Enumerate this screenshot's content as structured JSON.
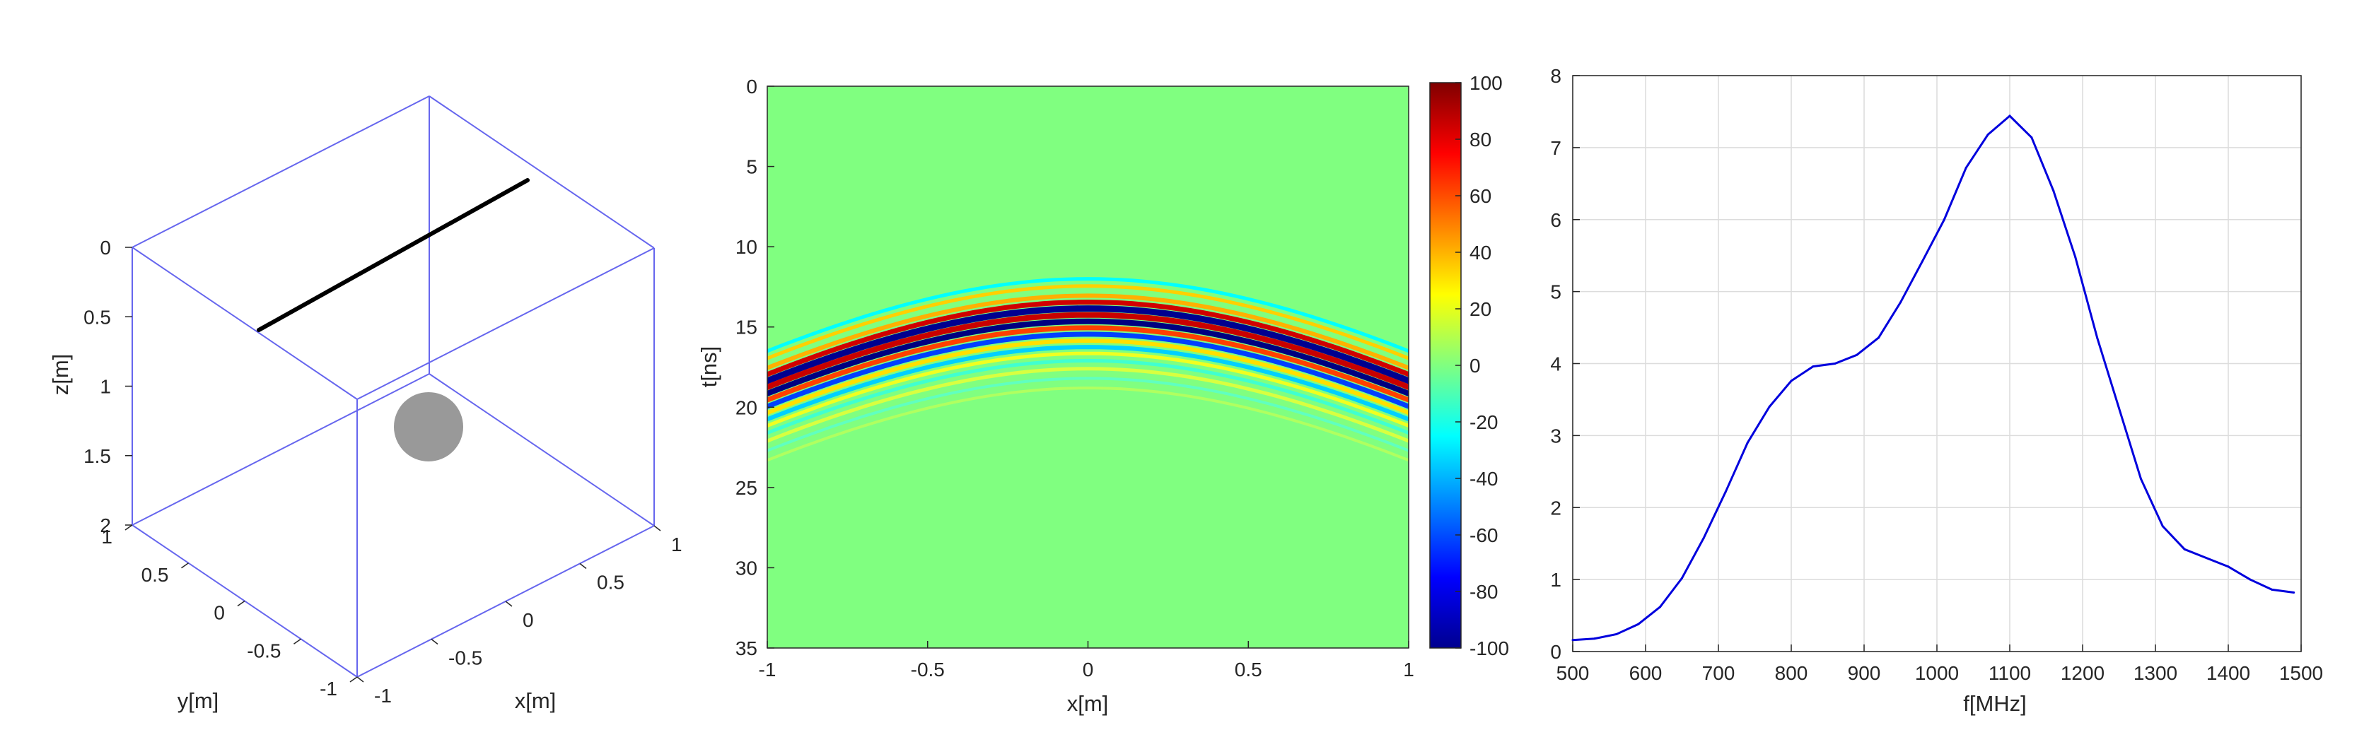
{
  "chart_data": [
    {
      "type": "scatter",
      "panel": "3d-geometry",
      "xlabel": "x[m]",
      "ylabel": "y[m]",
      "zlabel": "z[m]",
      "xlim": [
        -1,
        1
      ],
      "ylim": [
        -1,
        1
      ],
      "zlim": [
        0,
        2
      ],
      "z_reversed": true,
      "x_ticks": [
        "-1",
        "-0.5",
        "0",
        "0.5",
        "1"
      ],
      "y_ticks": [
        "-1",
        "-0.5",
        "0",
        "0.5",
        "1"
      ],
      "z_ticks": [
        "0",
        "0.5",
        "1",
        "1.5",
        "2"
      ],
      "box_color": "#6666ee",
      "line_color": "#000000",
      "sphere_color": "#999999"
    },
    {
      "type": "heatmap",
      "panel": "radargram",
      "xlabel": "x[m]",
      "ylabel": "t[ns]",
      "xlim": [
        -1,
        1
      ],
      "ylim": [
        0,
        35
      ],
      "y_reversed": true,
      "x_ticks": [
        "-1",
        "-0.5",
        "0",
        "0.5",
        "1"
      ],
      "y_ticks": [
        "0",
        "5",
        "10",
        "15",
        "20",
        "25",
        "30",
        "35"
      ],
      "colorbar_range": [
        -100,
        100
      ],
      "colorbar_ticks": [
        "100",
        "80",
        "60",
        "40",
        "20",
        "0",
        "-20",
        "-40",
        "-60",
        "-80",
        "-100"
      ],
      "colormap": "jet",
      "hyperbola_apex_t": 13.0,
      "hyperbola_edge_t": 17.5,
      "background_color": "#80ff80"
    },
    {
      "type": "line",
      "panel": "spectrum",
      "xlabel": "f[MHz]",
      "ylabel": "",
      "xlim": [
        500,
        1500
      ],
      "ylim": [
        0,
        8
      ],
      "grid": true,
      "x_ticks": [
        "500",
        "600",
        "700",
        "800",
        "900",
        "1000",
        "1100",
        "1200",
        "1300",
        "1400",
        "1500"
      ],
      "y_ticks": [
        "0",
        "1",
        "2",
        "3",
        "4",
        "5",
        "6",
        "7",
        "8"
      ],
      "line_color": "#0000dd",
      "x": [
        500,
        530,
        560,
        590,
        620,
        650,
        680,
        710,
        740,
        770,
        800,
        830,
        860,
        890,
        920,
        950,
        980,
        1010,
        1040,
        1070,
        1100,
        1130,
        1160,
        1190,
        1220,
        1250,
        1280,
        1310,
        1340,
        1370,
        1400,
        1430,
        1460,
        1490
      ],
      "y": [
        0.16,
        0.18,
        0.24,
        0.38,
        0.62,
        1.02,
        1.58,
        2.22,
        2.9,
        3.4,
        3.76,
        3.96,
        4.0,
        4.12,
        4.36,
        4.85,
        5.42,
        6.0,
        6.72,
        7.18,
        7.44,
        7.14,
        6.4,
        5.48,
        4.36,
        3.38,
        2.4,
        1.74,
        1.42,
        1.3,
        1.18,
        1.0,
        0.86,
        0.82
      ]
    }
  ]
}
